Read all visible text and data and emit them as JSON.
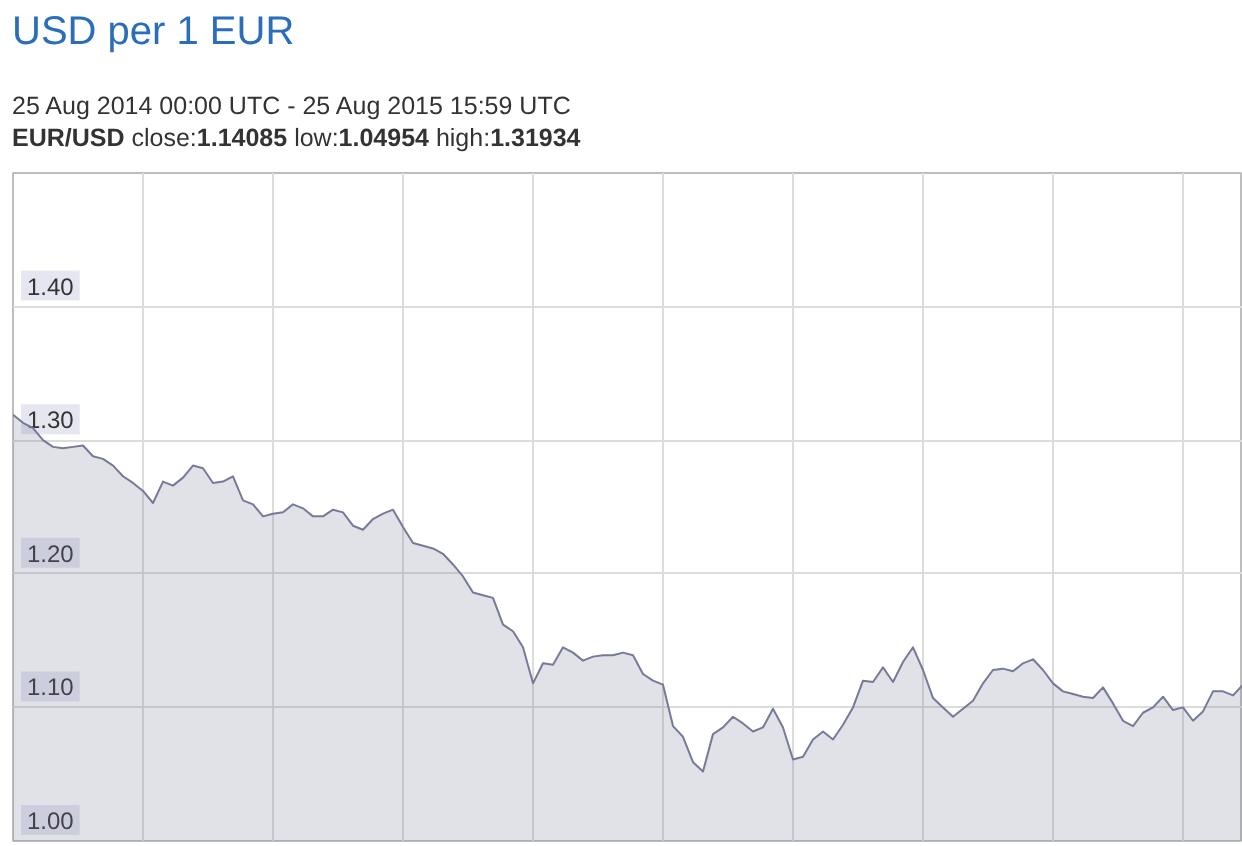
{
  "chart_data": {
    "type": "area",
    "title": "USD per 1 EUR",
    "subtitle": "25 Aug 2014 00:00 UTC - 25 Aug 2015 15:59 UTC",
    "annotations": [
      "EUR/USD close:1.14085 low:1.04954 high:1.31934"
    ],
    "categories": [
      null,
      null,
      null,
      null,
      null,
      null,
      null,
      null,
      null,
      null,
      null,
      null,
      null,
      null,
      null,
      null,
      null,
      null,
      null,
      null,
      null,
      null,
      null,
      null,
      null,
      null,
      null,
      null,
      null,
      null,
      null,
      null,
      null,
      null,
      null,
      null,
      null,
      null,
      null,
      null,
      null,
      null,
      null,
      null,
      null,
      null,
      null,
      null,
      null,
      null,
      null,
      null,
      null,
      null,
      null,
      null,
      null,
      null,
      null,
      null,
      null,
      null,
      null,
      null,
      null,
      null,
      null,
      null,
      null,
      null,
      null,
      null,
      null,
      null,
      null,
      null,
      null,
      null,
      null,
      null,
      null,
      null,
      null,
      null,
      null,
      null,
      null,
      null,
      null,
      null,
      null,
      null,
      null,
      null,
      null,
      null,
      null,
      null,
      null,
      null,
      null,
      null,
      null,
      null,
      null,
      null,
      null,
      null,
      null,
      null,
      null,
      null,
      null,
      null,
      null,
      null,
      null,
      null,
      null,
      null,
      null,
      null,
      null,
      null
    ],
    "values": [
      1.319,
      1.313,
      1.309,
      1.3,
      1.295,
      1.294,
      1.295,
      1.296,
      1.288,
      1.286,
      1.281,
      1.273,
      1.268,
      1.262,
      1.253,
      1.269,
      1.266,
      1.272,
      1.281,
      1.279,
      1.268,
      1.269,
      1.273,
      1.255,
      1.252,
      1.243,
      1.245,
      1.246,
      1.252,
      1.249,
      1.243,
      1.243,
      1.248,
      1.246,
      1.236,
      1.233,
      1.241,
      1.245,
      1.248,
      1.235,
      1.223,
      1.221,
      1.219,
      1.215,
      1.207,
      1.198,
      1.186,
      1.184,
      1.182,
      1.162,
      1.157,
      1.145,
      1.118,
      1.133,
      1.132,
      1.145,
      1.141,
      1.135,
      1.138,
      1.139,
      1.139,
      1.141,
      1.139,
      1.125,
      1.12,
      1.117,
      1.086,
      1.078,
      1.059,
      1.052,
      1.08,
      1.085,
      1.093,
      1.088,
      1.082,
      1.085,
      1.099,
      1.085,
      1.061,
      1.063,
      1.076,
      1.082,
      1.076,
      1.087,
      1.1,
      1.12,
      1.119,
      1.13,
      1.119,
      1.134,
      1.145,
      1.128,
      1.107,
      1.1,
      1.093,
      1.099,
      1.105,
      1.118,
      1.128,
      1.129,
      1.127,
      1.133,
      1.136,
      1.128,
      1.118,
      1.112,
      1.11,
      1.108,
      1.107,
      1.115,
      1.103,
      1.09,
      1.086,
      1.096,
      1.1,
      1.108,
      1.098,
      1.1,
      1.09,
      1.097,
      1.112,
      1.112,
      1.109,
      1.117
    ],
    "color": "#767a98",
    "ylim": [
      1.0,
      1.5
    ],
    "yticks": [
      {
        "value": 1.0,
        "label": "1.00"
      },
      {
        "value": 1.1,
        "label": "1.10"
      },
      {
        "value": 1.2,
        "label": "1.20"
      },
      {
        "value": 1.3,
        "label": "1.30"
      },
      {
        "value": 1.4,
        "label": "1.40"
      }
    ],
    "grid": true
  }
}
